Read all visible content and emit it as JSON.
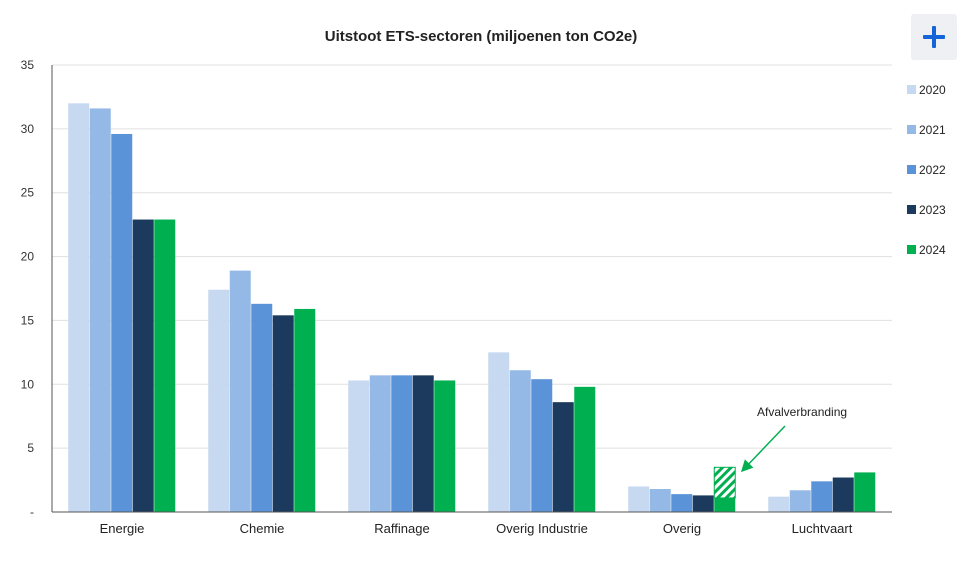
{
  "chart_data": {
    "type": "bar",
    "title": "Uitstoot ETS-sectoren (miljoenen ton CO2e)",
    "categories": [
      "Energie",
      "Chemie",
      "Raffinage",
      "Overig Industrie",
      "Overig",
      "Luchtvaart"
    ],
    "series": [
      {
        "name": "2020",
        "color": "#c6d9f1",
        "values": [
          32.0,
          17.4,
          10.3,
          12.5,
          2.0,
          1.2
        ]
      },
      {
        "name": "2021",
        "color": "#95b9e6",
        "values": [
          31.6,
          18.9,
          10.7,
          11.1,
          1.8,
          1.7
        ]
      },
      {
        "name": "2022",
        "color": "#5b93d8",
        "values": [
          29.6,
          16.3,
          10.7,
          10.4,
          1.4,
          2.4
        ]
      },
      {
        "name": "2023",
        "color": "#1b3a5e",
        "values": [
          22.9,
          15.4,
          10.7,
          8.6,
          1.3,
          2.7
        ]
      },
      {
        "name": "2024",
        "color": "#00b050",
        "values": [
          22.9,
          15.9,
          10.3,
          9.8,
          1.1,
          3.1
        ]
      }
    ],
    "hatched_segment": {
      "category": "Overig",
      "series": "2024",
      "from": 1.1,
      "to": 3.5,
      "label": "Afvalverbranding"
    },
    "ylim": [
      0,
      35
    ],
    "yticks": [
      0,
      5,
      10,
      15,
      20,
      25,
      30,
      35
    ],
    "ytick_labels": [
      "-",
      "5",
      "10",
      "15",
      "20",
      "25",
      "30",
      "35"
    ],
    "grid": true,
    "legend_position": "right"
  }
}
